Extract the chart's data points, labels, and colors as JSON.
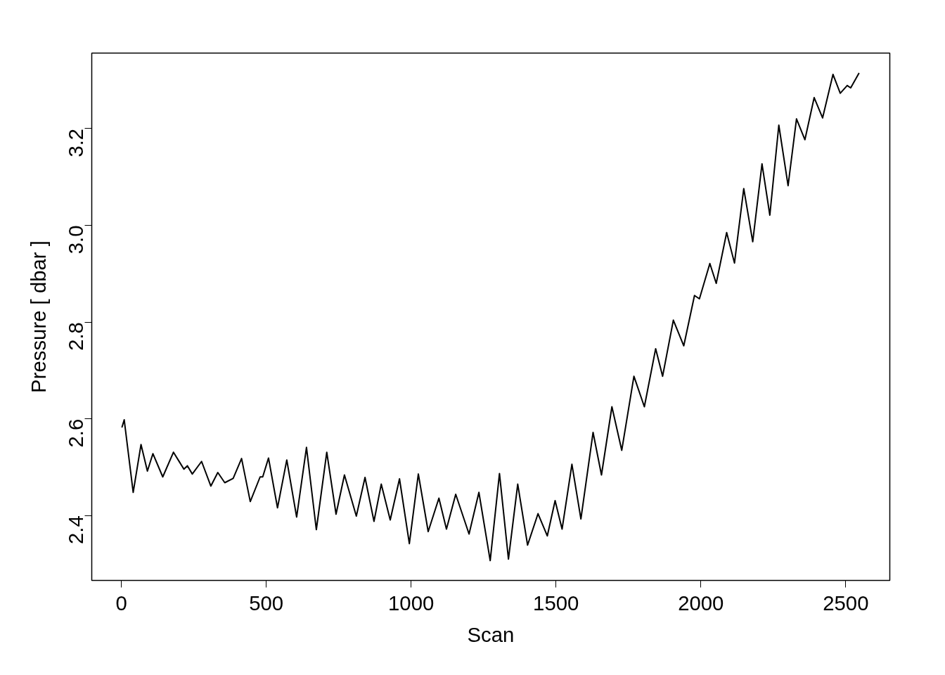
{
  "chart_data": {
    "type": "line",
    "xlabel": "Scan",
    "ylabel": "Pressure [ dbar ]",
    "xlim": [
      -102,
      2652
    ],
    "ylim": [
      2.266,
      3.356
    ],
    "xticks": [
      0,
      500,
      1000,
      1500,
      2000,
      2500
    ],
    "yticks": [
      {
        "value": 2.4,
        "label": "2.4"
      },
      {
        "value": 2.6,
        "label": "2.6"
      },
      {
        "value": 2.8,
        "label": "2.8"
      },
      {
        "value": 3.0,
        "label": "3.0"
      },
      {
        "value": 3.2,
        "label": "3.2"
      }
    ],
    "grid": false,
    "marker": "none",
    "line_style": "solid",
    "series": [
      {
        "color": "#000000",
        "x": [
          2,
          10,
          41,
          68,
          90,
          109,
          143,
          180,
          216,
          228,
          245,
          277,
          309,
          333,
          357,
          386,
          415,
          445,
          479,
          488,
          508,
          539,
          571,
          605,
          639,
          673,
          709,
          741,
          770,
          811,
          841,
          872,
          897,
          928,
          960,
          994,
          1025,
          1059,
          1096,
          1122,
          1154,
          1200,
          1234,
          1273,
          1305,
          1336,
          1368,
          1402,
          1438,
          1470,
          1497,
          1521,
          1555,
          1586,
          1628,
          1657,
          1693,
          1727,
          1769,
          1805,
          1844,
          1868,
          1905,
          1941,
          1978,
          1995,
          2031,
          2053,
          2089,
          2116,
          2148,
          2179,
          2211,
          2238,
          2269,
          2301,
          2330,
          2359,
          2391,
          2420,
          2456,
          2481,
          2505,
          2517,
          2546
        ],
        "values": [
          2.582,
          2.598,
          2.448,
          2.547,
          2.492,
          2.528,
          2.48,
          2.531,
          2.496,
          2.503,
          2.486,
          2.512,
          2.461,
          2.489,
          2.468,
          2.477,
          2.518,
          2.429,
          2.48,
          2.48,
          2.519,
          2.416,
          2.515,
          2.397,
          2.541,
          2.371,
          2.531,
          2.403,
          2.484,
          2.399,
          2.479,
          2.388,
          2.465,
          2.391,
          2.476,
          2.342,
          2.486,
          2.367,
          2.436,
          2.372,
          2.444,
          2.362,
          2.448,
          2.307,
          2.487,
          2.31,
          2.465,
          2.339,
          2.404,
          2.358,
          2.431,
          2.372,
          2.506,
          2.393,
          2.572,
          2.484,
          2.625,
          2.535,
          2.688,
          2.625,
          2.745,
          2.688,
          2.804,
          2.751,
          2.855,
          2.848,
          2.921,
          2.88,
          2.985,
          2.922,
          3.076,
          2.966,
          3.127,
          3.021,
          3.207,
          3.082,
          3.22,
          3.177,
          3.264,
          3.222,
          3.312,
          3.273,
          3.289,
          3.284,
          3.315
        ]
      }
    ]
  }
}
